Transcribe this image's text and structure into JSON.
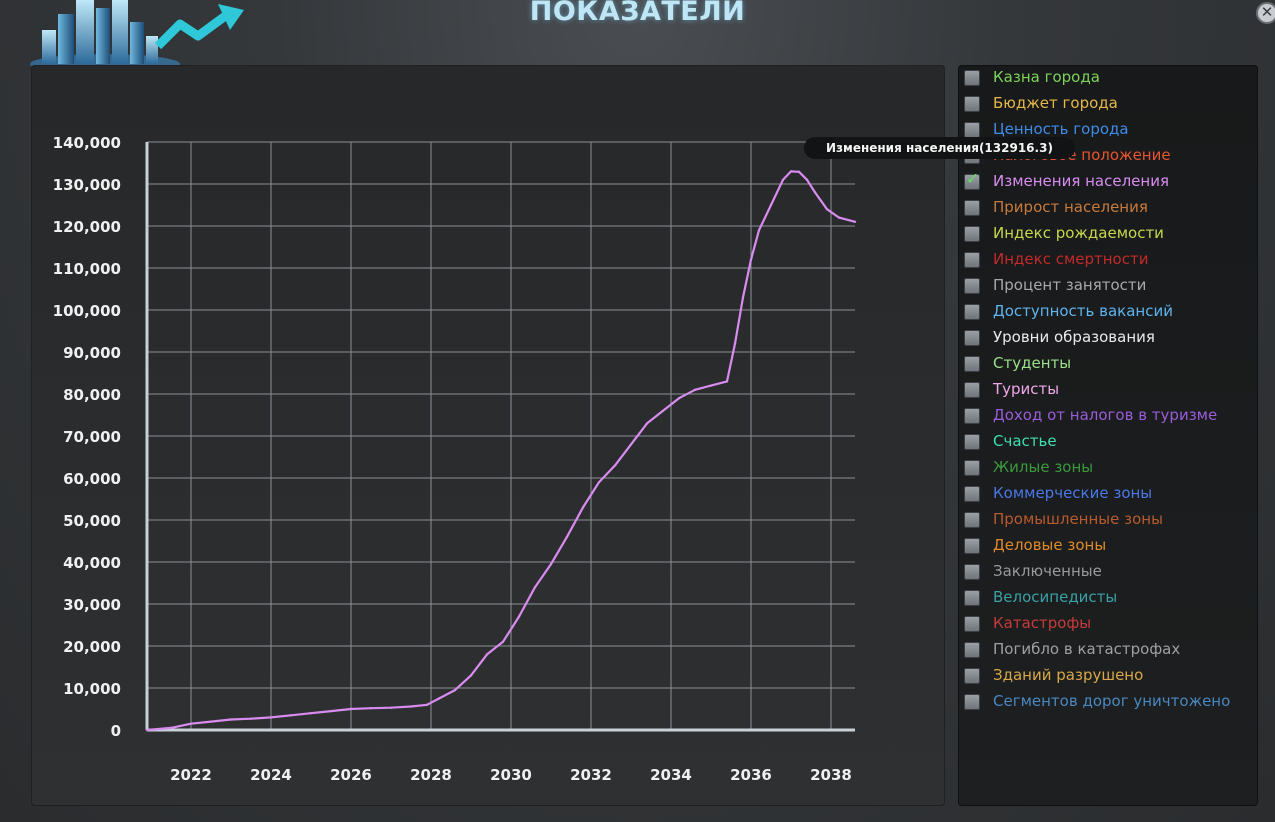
{
  "window": {
    "title": "ПОКАЗАТЕЛИ",
    "close_glyph": "✕"
  },
  "tooltip": {
    "text": "Изменения населения(132916.3)"
  },
  "chart_data": {
    "type": "line",
    "title": "",
    "xlabel": "",
    "ylabel": "",
    "xlim": [
      2020.9,
      2038.6
    ],
    "ylim": [
      0,
      140000
    ],
    "x_ticks": [
      "2022",
      "2024",
      "2026",
      "2028",
      "2030",
      "2032",
      "2034",
      "2036",
      "2038"
    ],
    "y_ticks": [
      "140,000",
      "130,000",
      "120,000",
      "110,000",
      "100,000",
      "90,000",
      "80,000",
      "70,000",
      "60,000",
      "50,000",
      "40,000",
      "30,000",
      "20,000",
      "10,000",
      "0"
    ],
    "grid": true,
    "series": [
      {
        "name": "Изменения населения",
        "color": "#d98cf0",
        "x": [
          2020.9,
          2021.5,
          2022.0,
          2022.5,
          2023.0,
          2023.5,
          2024.0,
          2024.5,
          2025.0,
          2025.5,
          2026.0,
          2026.5,
          2027.0,
          2027.5,
          2027.9,
          2028.2,
          2028.6,
          2029.0,
          2029.4,
          2029.8,
          2030.2,
          2030.6,
          2031.0,
          2031.4,
          2031.8,
          2032.2,
          2032.6,
          2033.0,
          2033.4,
          2033.8,
          2034.2,
          2034.6,
          2035.0,
          2035.4,
          2035.6,
          2035.8,
          2036.0,
          2036.2,
          2036.5,
          2036.8,
          2037.0,
          2037.2,
          2037.4,
          2037.6,
          2037.9,
          2038.2,
          2038.6
        ],
        "values": [
          0,
          500,
          1500,
          2000,
          2500,
          2700,
          3000,
          3500,
          4000,
          4500,
          5000,
          5200,
          5300,
          5600,
          6000,
          7500,
          9500,
          13000,
          18000,
          21000,
          27000,
          34000,
          39500,
          46000,
          53000,
          59000,
          63000,
          68000,
          73000,
          76000,
          79000,
          81000,
          82000,
          83000,
          92000,
          103000,
          112000,
          119000,
          125000,
          131000,
          133000,
          132900,
          131000,
          128000,
          124000,
          122000,
          121000
        ]
      }
    ]
  },
  "legend": {
    "items": [
      {
        "label": "Казна города",
        "color": "#7ed35a",
        "checked": false
      },
      {
        "label": "Бюджет города",
        "color": "#e6b84a",
        "checked": false
      },
      {
        "label": "Ценность города",
        "color": "#3f8ce8",
        "checked": false
      },
      {
        "label": "Налоговое положение",
        "color": "#e8552e",
        "checked": false
      },
      {
        "label": "Изменения населения",
        "color": "#d98cf0",
        "checked": true
      },
      {
        "label": "Прирост населения",
        "color": "#c97a3a",
        "checked": false
      },
      {
        "label": "Индекс рождаемости",
        "color": "#c8d84a",
        "checked": false
      },
      {
        "label": "Индекс смертности",
        "color": "#c42a2a",
        "checked": false
      },
      {
        "label": "Процент занятости",
        "color": "#a8a8a8",
        "checked": false
      },
      {
        "label": "Доступность вакансий",
        "color": "#5fb4f0",
        "checked": false
      },
      {
        "label": "Уровни образования",
        "color": "#eaeaea",
        "checked": false
      },
      {
        "label": "Студенты",
        "color": "#9ce08a",
        "checked": false
      },
      {
        "label": "Туристы",
        "color": "#f0a8e8",
        "checked": false
      },
      {
        "label": "Доход от налогов в туризме",
        "color": "#9a5cd8",
        "checked": false
      },
      {
        "label": "Счастье",
        "color": "#3de0b0",
        "checked": false
      },
      {
        "label": "Жилые зоны",
        "color": "#3a9a3a",
        "checked": false
      },
      {
        "label": "Коммерческие зоны",
        "color": "#4a78e8",
        "checked": false
      },
      {
        "label": "Промышленные зоны",
        "color": "#b85a2e",
        "checked": false
      },
      {
        "label": "Деловые зоны",
        "color": "#e08a2a",
        "checked": false
      },
      {
        "label": "Заключенные",
        "color": "#9a9a9a",
        "checked": false
      },
      {
        "label": "Велосипедисты",
        "color": "#3aa0a8",
        "checked": false
      },
      {
        "label": "Катастрофы",
        "color": "#c83a3a",
        "checked": false
      },
      {
        "label": "Погибло в катастрофах",
        "color": "#a0a0a0",
        "checked": false
      },
      {
        "label": "Зданий разрушено",
        "color": "#d8a848",
        "checked": false
      },
      {
        "label": "Сегментов дорог уничтожено",
        "color": "#4a88c0",
        "checked": false
      }
    ]
  }
}
